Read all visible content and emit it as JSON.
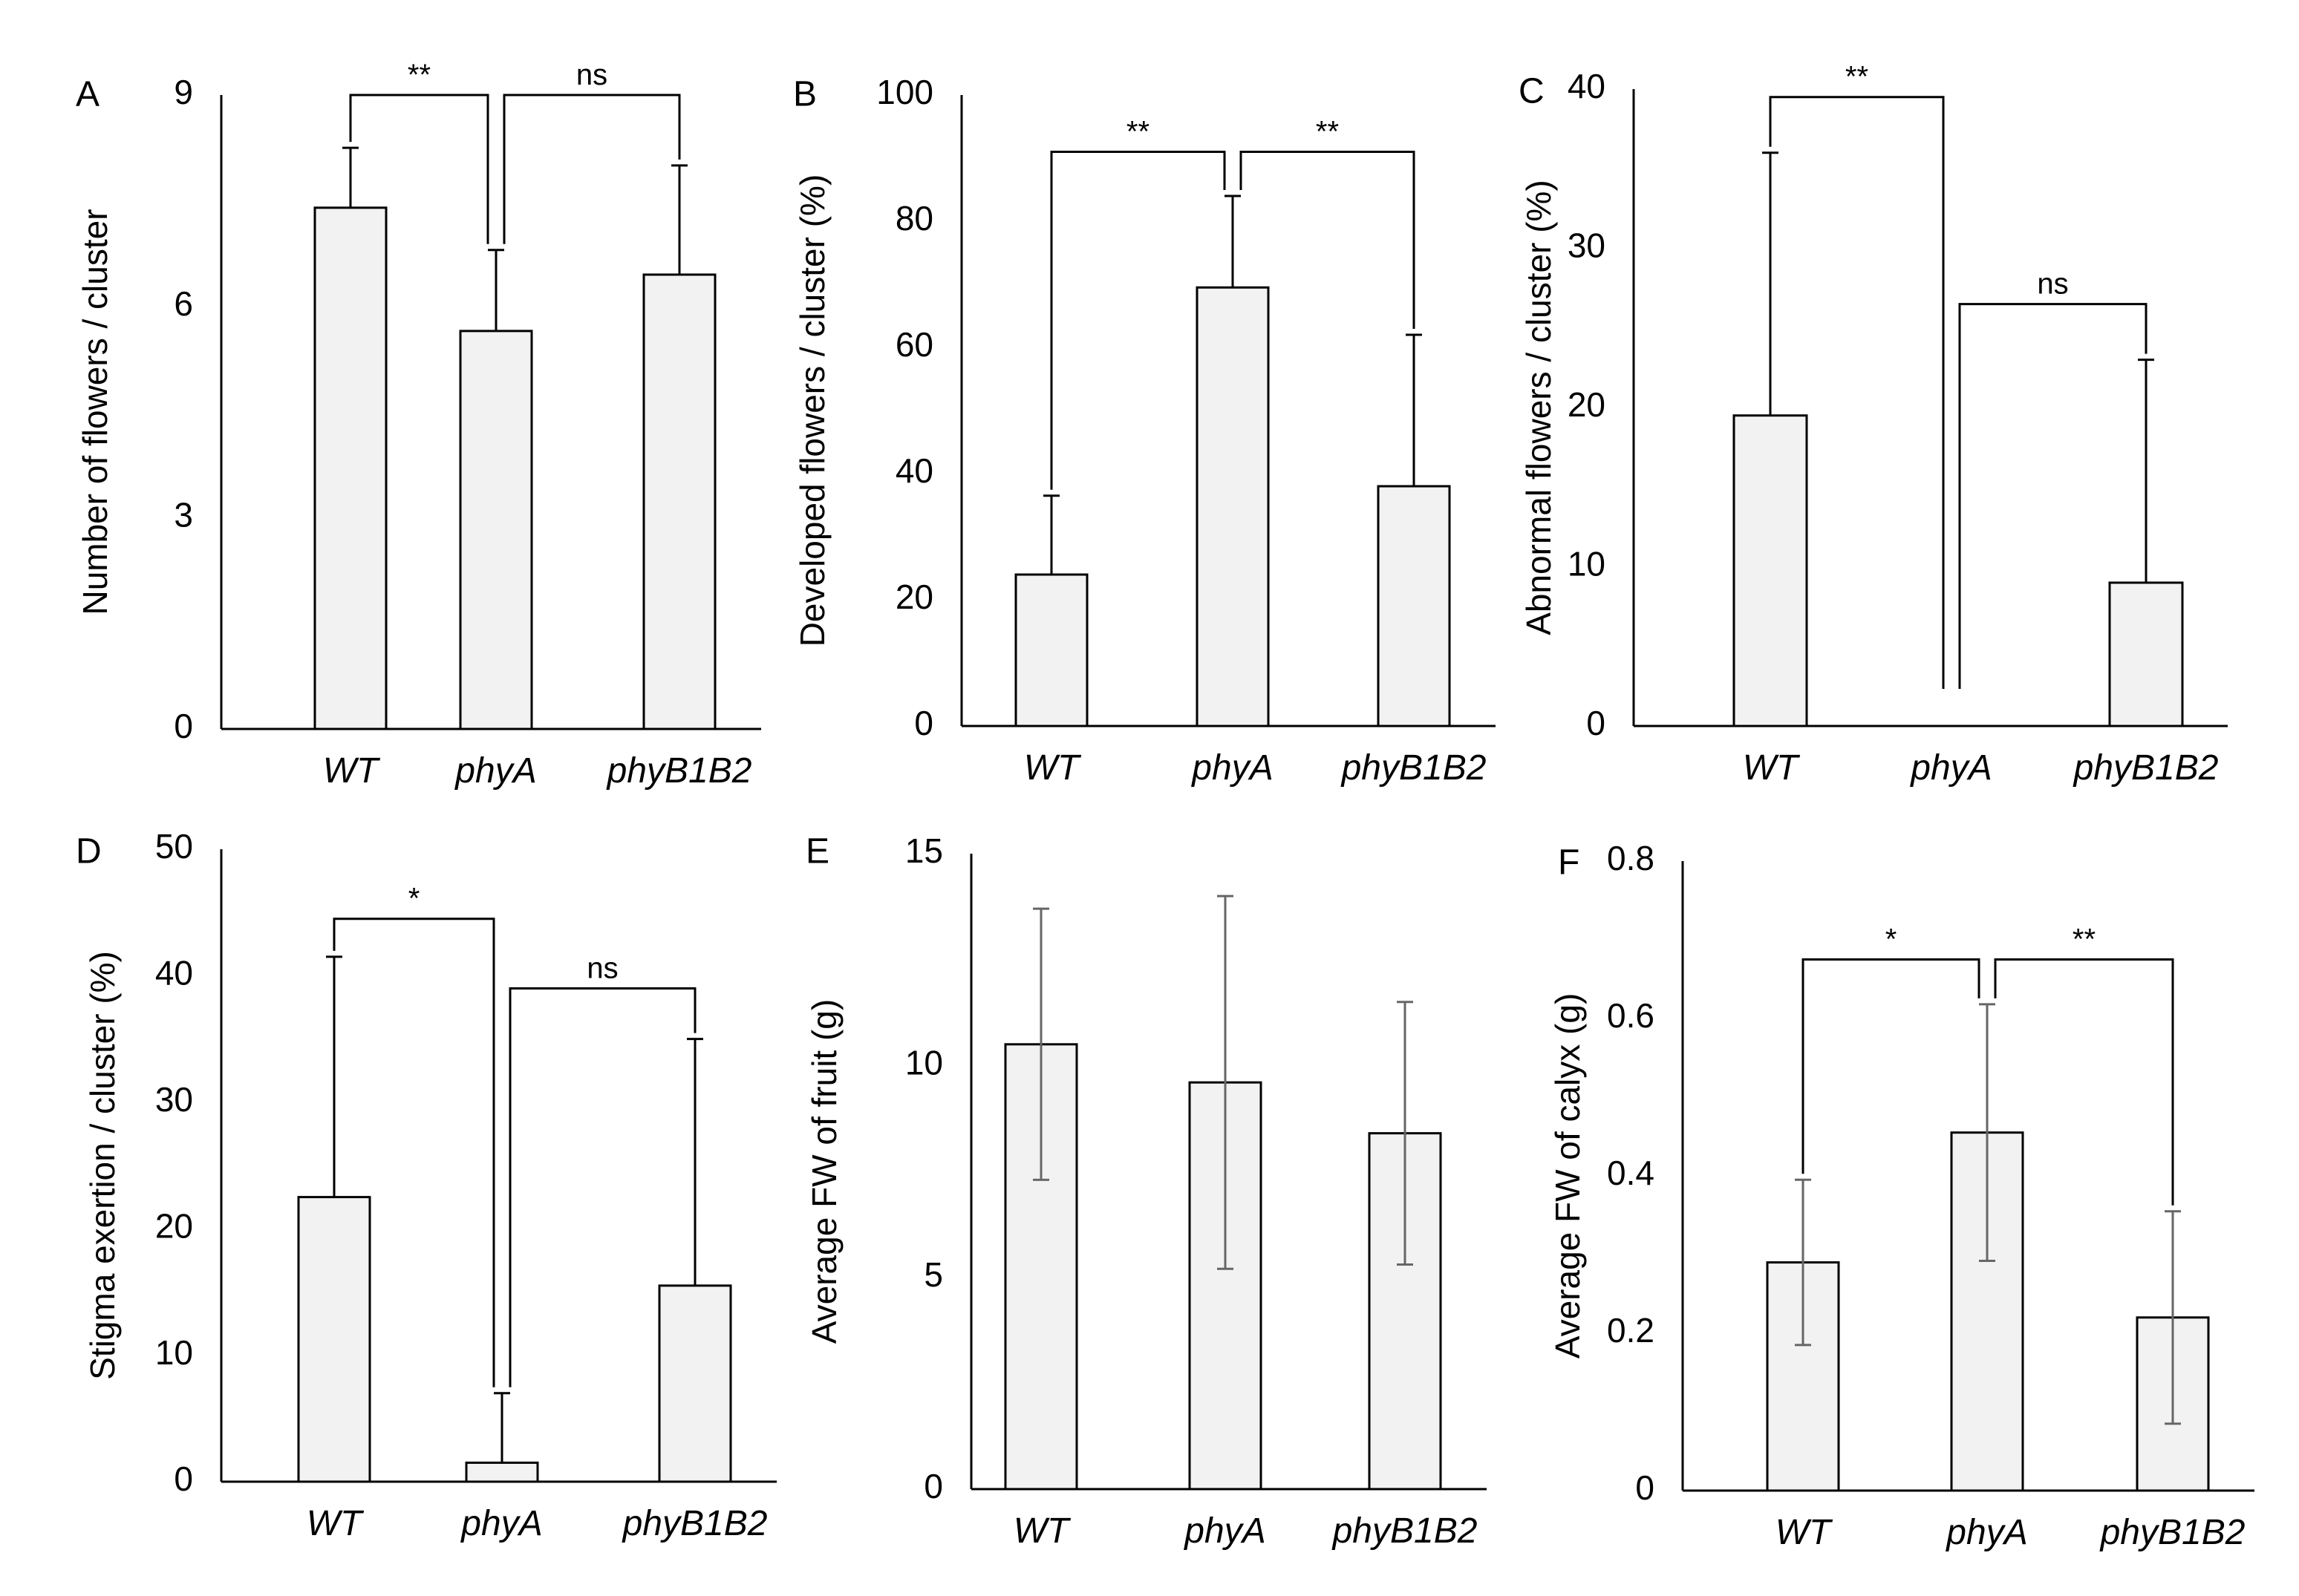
{
  "figure": {
    "colors": {
      "bar_fill": "#f2f2f2",
      "bar_stroke": "#000000",
      "axis": "#000000",
      "bracket": "#000000",
      "errorbar_dark": "#000000",
      "errorbar_gray": "#666666"
    },
    "categories": [
      "WT",
      "phyA",
      "phyB1B2"
    ]
  },
  "chart_data": [
    {
      "panel": "A",
      "type": "bar",
      "ylabel": "Number of flowers / cluster",
      "categories": [
        "WT",
        "phyA",
        "phyB1B2"
      ],
      "values": [
        7.4,
        5.65,
        6.45
      ],
      "errors": [
        0.85,
        1.15,
        1.55
      ],
      "error_bar_style": "upper",
      "error_bar_color": "errorbar_dark",
      "ylim": [
        0,
        9
      ],
      "yticks": [
        0,
        3,
        6,
        9
      ],
      "significance": [
        {
          "from": 0,
          "to": 1,
          "label": "**",
          "y": 9.0
        },
        {
          "from": 1,
          "to": 2,
          "label": "ns",
          "y": 9.0
        }
      ]
    },
    {
      "panel": "B",
      "type": "bar",
      "ylabel": "Developed flowers / cluster (%)",
      "categories": [
        "WT",
        "phyA",
        "phyB1B2"
      ],
      "values": [
        24,
        69.5,
        38
      ],
      "errors": [
        12.5,
        14.5,
        24
      ],
      "error_bar_style": "upper",
      "error_bar_color": "errorbar_dark",
      "ylim": [
        0,
        100
      ],
      "yticks": [
        0,
        20,
        40,
        60,
        80,
        100
      ],
      "significance": [
        {
          "from": 0,
          "to": 1,
          "label": "**",
          "y": 91
        },
        {
          "from": 1,
          "to": 2,
          "label": "**",
          "y": 91
        }
      ]
    },
    {
      "panel": "C",
      "type": "bar",
      "ylabel": "Abnormal flowers / cluster (%)",
      "categories": [
        "WT",
        "phyA",
        "phyB1B2"
      ],
      "values": [
        19.5,
        0,
        9
      ],
      "errors": [
        16.5,
        0,
        14
      ],
      "error_bar_style": "upper",
      "error_bar_color": "errorbar_dark",
      "ylim": [
        0,
        40
      ],
      "yticks": [
        0,
        10,
        20,
        30,
        40
      ],
      "significance": [
        {
          "from": 0,
          "to": 1,
          "label": "**",
          "y": 39.5
        },
        {
          "from": 1,
          "to": 2,
          "label": "ns",
          "y": 26.5
        }
      ]
    },
    {
      "panel": "D",
      "type": "bar",
      "ylabel": "Stigma exertion / cluster (%)",
      "categories": [
        "WT",
        "phyA",
        "phyB1B2"
      ],
      "values": [
        22.5,
        1.5,
        15.5
      ],
      "errors": [
        19,
        5.5,
        19.5
      ],
      "error_bar_style": "upper",
      "error_bar_color": "errorbar_dark",
      "ylim": [
        0,
        50
      ],
      "yticks": [
        0,
        10,
        20,
        30,
        40,
        50
      ],
      "significance": [
        {
          "from": 0,
          "to": 1,
          "label": "*",
          "y": 44.5
        },
        {
          "from": 1,
          "to": 2,
          "label": "ns",
          "y": 39
        }
      ]
    },
    {
      "panel": "E",
      "type": "bar",
      "ylabel": "Average FW of fruit (g)",
      "categories": [
        "WT",
        "phyA",
        "phyB1B2"
      ],
      "values": [
        10.5,
        9.6,
        8.4
      ],
      "errors": [
        3.2,
        4.4,
        3.1
      ],
      "error_bar_style": "both",
      "error_bar_color": "errorbar_gray",
      "ylim": [
        0,
        15
      ],
      "yticks": [
        0,
        5,
        10,
        15
      ],
      "significance": []
    },
    {
      "panel": "F",
      "type": "bar",
      "ylabel": "Average FW of calyx (g)",
      "categories": [
        "WT",
        "phyA",
        "phyB1B2"
      ],
      "values": [
        0.29,
        0.455,
        0.22
      ],
      "errors": [
        0.105,
        0.163,
        0.135
      ],
      "error_bar_style": "both",
      "error_bar_color": "errorbar_gray",
      "ylim": [
        0,
        0.8
      ],
      "yticks": [
        "0",
        "0.2",
        "0.4",
        "0.6",
        "0.8"
      ],
      "significance": [
        {
          "from": 0,
          "to": 1,
          "label": "*",
          "y": 0.675
        },
        {
          "from": 1,
          "to": 2,
          "label": "**",
          "y": 0.675
        }
      ]
    }
  ]
}
